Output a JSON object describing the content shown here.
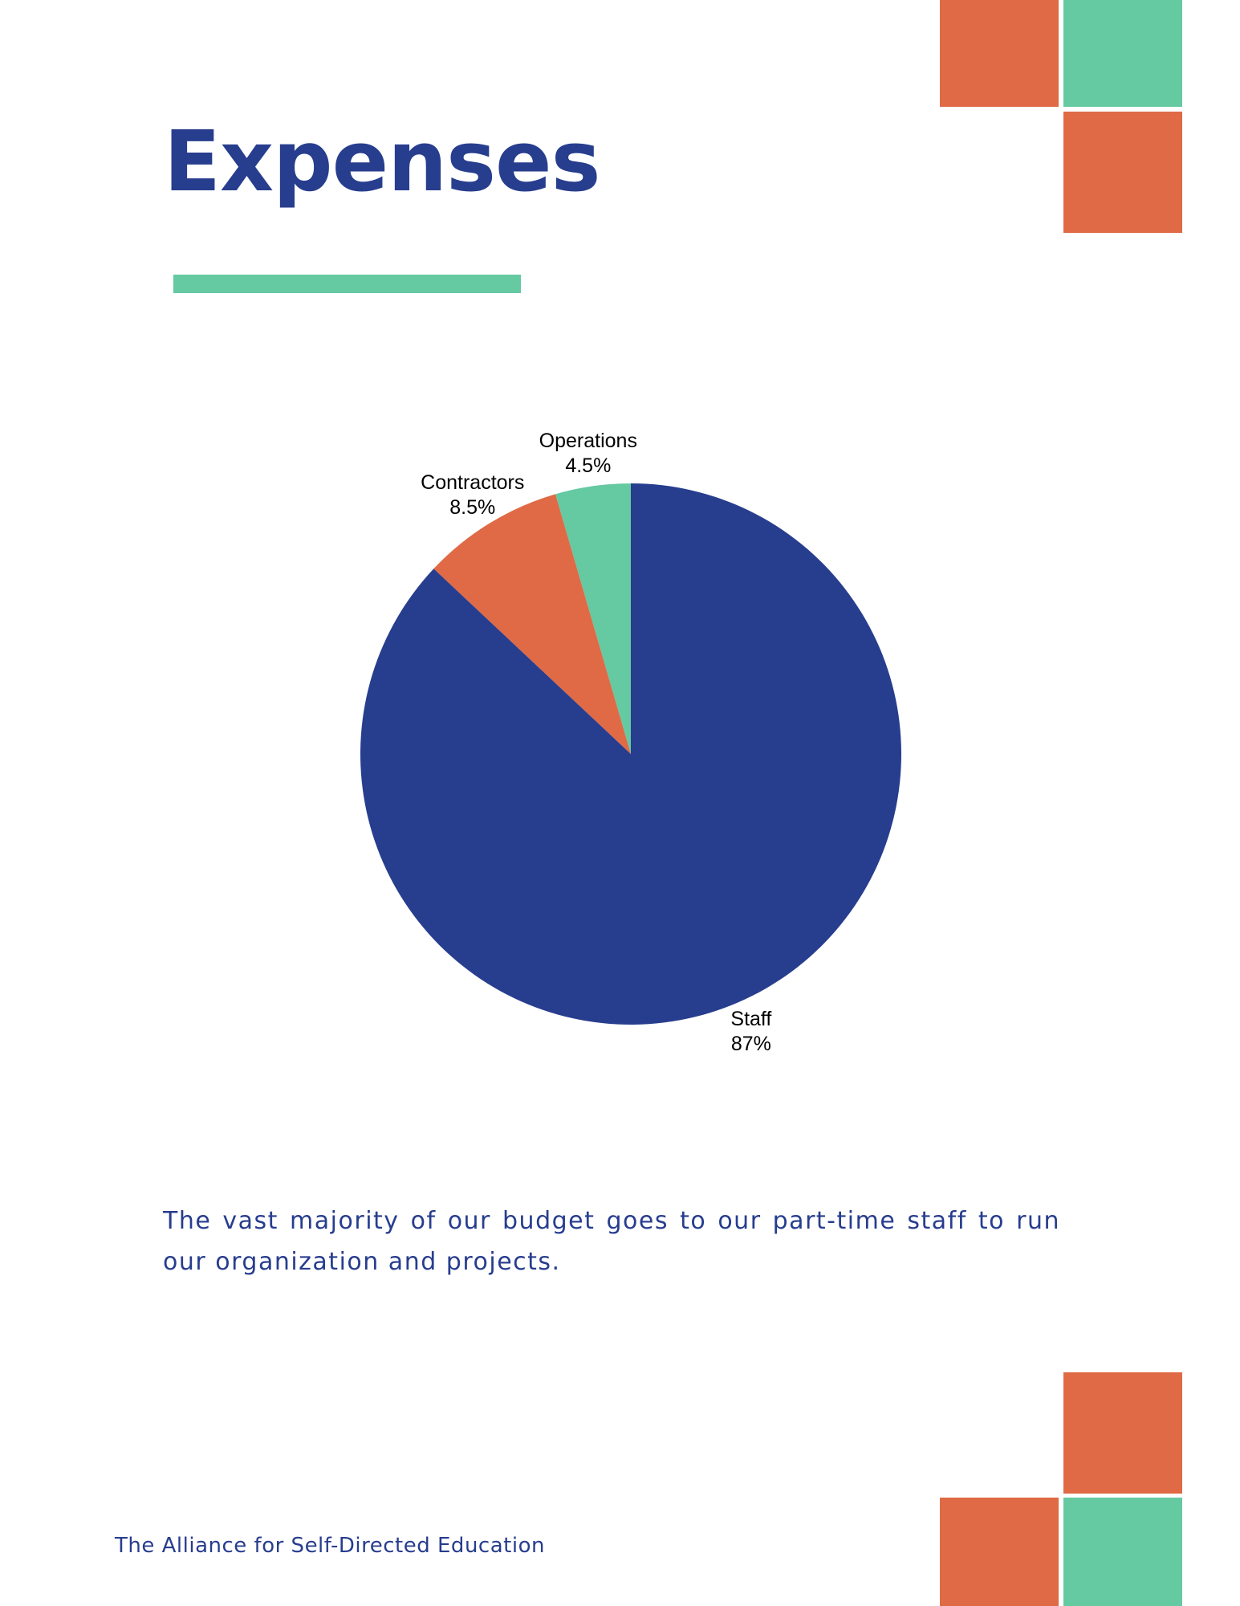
{
  "title": "Expenses",
  "chart_data": {
    "type": "pie",
    "categories": [
      "Operations",
      "Contractors",
      "Staff"
    ],
    "values": [
      4.5,
      8.5,
      87
    ],
    "value_labels": [
      "4.5%",
      "8.5%",
      "87%"
    ],
    "colors": [
      "#65c9a2",
      "#df6a45",
      "#273d8e"
    ],
    "start_angle": 90,
    "counterclock": true
  },
  "body": "The vast majority of our budget goes to our part-time staff to run our organization and projects.",
  "footer": "The Alliance for Self-Directed Education"
}
